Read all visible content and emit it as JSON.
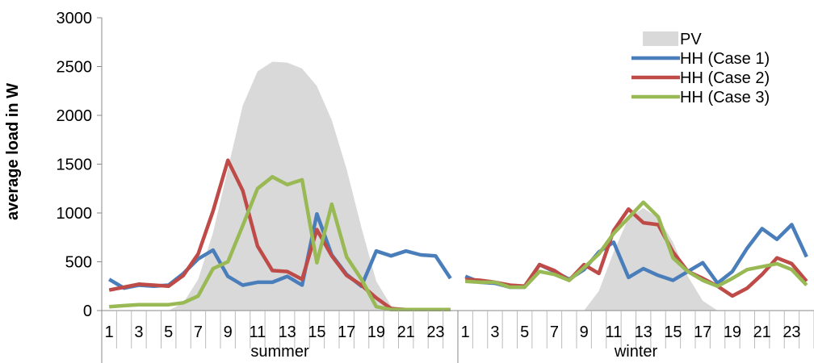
{
  "chart_data": {
    "type": "line",
    "ylabel": "average load in W",
    "ylim": [
      0,
      3000
    ],
    "yticks": [
      0,
      500,
      1000,
      1500,
      2000,
      2500,
      3000
    ],
    "grid": false,
    "legend_position": "top-right",
    "groups": [
      "summer",
      "winter"
    ],
    "hours": [
      1,
      2,
      3,
      4,
      5,
      6,
      7,
      8,
      9,
      10,
      11,
      12,
      13,
      14,
      15,
      16,
      17,
      18,
      19,
      20,
      21,
      22,
      23,
      24
    ],
    "hour_tick_labels": [
      "1",
      "3",
      "5",
      "7",
      "9",
      "11",
      "13",
      "15",
      "17",
      "19",
      "21",
      "23"
    ],
    "series": [
      {
        "name": "PV",
        "kind": "area",
        "color": "#d9d9d9",
        "summer": [
          0,
          0,
          0,
          0,
          0,
          80,
          320,
          800,
          1450,
          2100,
          2450,
          2550,
          2540,
          2480,
          2300,
          1950,
          1450,
          850,
          300,
          50,
          0,
          0,
          0,
          0
        ],
        "winter": [
          0,
          0,
          0,
          0,
          0,
          0,
          0,
          0,
          0,
          200,
          600,
          950,
          1050,
          950,
          700,
          350,
          100,
          0,
          0,
          0,
          0,
          0,
          0,
          0
        ]
      },
      {
        "name": "HH (Case 1)",
        "kind": "line",
        "color": "#4a7ebb",
        "summer": [
          320,
          230,
          260,
          250,
          260,
          380,
          530,
          620,
          350,
          260,
          290,
          290,
          350,
          260,
          990,
          570,
          370,
          250,
          610,
          560,
          610,
          570,
          560,
          330
        ],
        "winter": [
          350,
          290,
          280,
          240,
          240,
          470,
          400,
          320,
          420,
          600,
          700,
          340,
          430,
          360,
          310,
          400,
          490,
          280,
          400,
          640,
          840,
          730,
          880,
          550
        ]
      },
      {
        "name": "HH (Case 2)",
        "kind": "line",
        "color": "#be4b48",
        "summer": [
          210,
          240,
          270,
          260,
          250,
          360,
          580,
          1020,
          1540,
          1230,
          660,
          410,
          400,
          320,
          830,
          560,
          360,
          260,
          130,
          20,
          10,
          10,
          10,
          10
        ],
        "winter": [
          320,
          310,
          290,
          260,
          250,
          470,
          410,
          310,
          470,
          380,
          820,
          1040,
          900,
          880,
          600,
          400,
          330,
          250,
          150,
          230,
          370,
          540,
          480,
          300
        ]
      },
      {
        "name": "HH (Case 3)",
        "kind": "line",
        "color": "#98b954",
        "summer": [
          40,
          50,
          60,
          60,
          60,
          80,
          150,
          430,
          500,
          870,
          1250,
          1370,
          1290,
          1340,
          490,
          1090,
          550,
          320,
          40,
          10,
          10,
          10,
          10,
          10
        ],
        "winter": [
          300,
          290,
          290,
          240,
          240,
          400,
          370,
          310,
          440,
          580,
          790,
          950,
          1110,
          960,
          540,
          400,
          310,
          250,
          330,
          420,
          450,
          480,
          420,
          260
        ]
      }
    ]
  }
}
